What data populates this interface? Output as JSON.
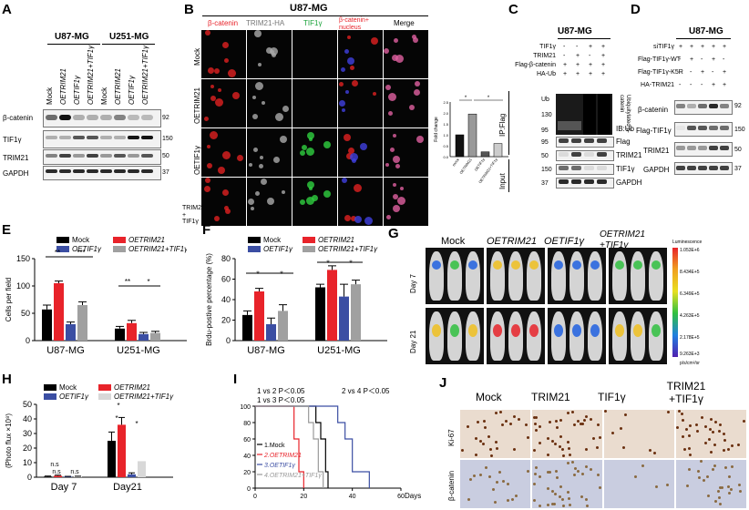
{
  "panels": {
    "A": {
      "label": "A",
      "groups": [
        "U87-MG",
        "U251-MG"
      ],
      "lanes": [
        "Mock",
        "OETRIM21",
        "OETIF1γ",
        "OETRIM21+TIF1γ",
        "Mock",
        "OETRIM21",
        "OETIF1γ",
        "OETRIM21+TIF1γ"
      ],
      "blots": [
        "β-catenin",
        "TIF1γ",
        "TRIM21",
        "GAPDH"
      ],
      "mw": [
        "92",
        "150",
        "50",
        "37"
      ]
    },
    "B": {
      "label": "B",
      "title": "U87-MG",
      "channels": [
        "β-catenin",
        "TRIM21-HA",
        "TIF1γ",
        "β-catenin+ nucleus",
        "Merge"
      ],
      "rows": [
        "Mock",
        "OETRIM21",
        "OETIF1γ",
        "TRIM21 + TIF1γ"
      ],
      "bar_ylabel": "Fold change",
      "bar_categories": [
        "mock",
        "OETRIM21",
        "OETIF1γ",
        "OETRIM21+TIF1γ"
      ],
      "bar_values": [
        1.0,
        1.95,
        0.22,
        0.6
      ],
      "bar_yticks": [
        "0.0",
        "0.5",
        "1.0",
        "1.5",
        "2.0",
        "2.5"
      ],
      "sig": "*"
    },
    "C": {
      "label": "C",
      "title": "U87-MG",
      "conds": [
        "TIF1γ",
        "TRIM21",
        "Flag-β-catenin",
        "HA-Ub"
      ],
      "cond_values": [
        [
          "-",
          "-",
          "+",
          "+"
        ],
        [
          "-",
          "+",
          "-",
          "+"
        ],
        [
          "+",
          "+",
          "+",
          "+"
        ],
        [
          "+",
          "+",
          "+",
          "+"
        ]
      ],
      "blots": [
        "IB:Ub",
        "Flag",
        "TRIM21",
        "TIF1γ",
        "GAPDH"
      ],
      "side": [
        "IP:Flag",
        "Input"
      ],
      "ubq": "Ubiquitylated β-catenin",
      "mw": [
        "Ub",
        "130",
        "95",
        "95",
        "50",
        "150",
        "37"
      ]
    },
    "D": {
      "label": "D",
      "title": "U87-MG",
      "conds": [
        "siTIF1γ",
        "Flag-TIF1γ-WT",
        "Flag-TIF1γ-K5R",
        "HA-TRIM21"
      ],
      "cond_values": [
        [
          "+",
          "+",
          "+",
          "+",
          "+"
        ],
        [
          "-",
          "+",
          "-",
          "+",
          "-"
        ],
        [
          "-",
          "-",
          "+",
          "-",
          "+"
        ],
        [
          "-",
          "-",
          "-",
          "+",
          "+"
        ]
      ],
      "blots": [
        "β-catenin",
        "Flag-TIF1γ",
        "TRIM21",
        "GAPDH"
      ],
      "mw": [
        "92",
        "150",
        "50",
        "37"
      ]
    }
  },
  "chart_data": [
    {
      "panel": "E",
      "type": "bar",
      "ylabel": "Cells per field",
      "ylim": [
        0,
        150
      ],
      "yticks": [
        "0",
        "50",
        "100",
        "150"
      ],
      "categories": [
        "U87-MG",
        "U251-MG"
      ],
      "series": [
        {
          "name": "Mock",
          "color": "#000000",
          "values": [
            57,
            22
          ]
        },
        {
          "name": "OETRIM21",
          "color": "#e8232a",
          "values": [
            105,
            32
          ]
        },
        {
          "name": "OETIF1γ",
          "color": "#3b4ea3",
          "values": [
            30,
            12
          ]
        },
        {
          "name": "OETRIM21+TIF1γ",
          "color": "#a0a0a0",
          "values": [
            65,
            14
          ]
        }
      ],
      "errors": [
        [
          8,
          4
        ],
        [
          4,
          5
        ],
        [
          4,
          3
        ],
        [
          6,
          3
        ]
      ],
      "sig": [
        "**",
        "***",
        "**",
        "*"
      ]
    },
    {
      "panel": "F",
      "type": "bar",
      "ylabel": "Brdu-postive percentage (%)",
      "ylim": [
        0,
        80
      ],
      "yticks": [
        "0",
        "20",
        "40",
        "60",
        "80"
      ],
      "categories": [
        "U87-MG",
        "U251-MG"
      ],
      "series": [
        {
          "name": "Mock",
          "color": "#000000",
          "values": [
            25,
            52
          ]
        },
        {
          "name": "OETRIM21",
          "color": "#e8232a",
          "values": [
            48,
            69
          ]
        },
        {
          "name": "OETIF1γ",
          "color": "#3b4ea3",
          "values": [
            16,
            43
          ]
        },
        {
          "name": "OETRIM21+TIF1γ",
          "color": "#a0a0a0",
          "values": [
            29,
            55
          ]
        }
      ],
      "errors": [
        [
          4,
          3
        ],
        [
          3,
          4
        ],
        [
          6,
          12
        ],
        [
          6,
          4
        ]
      ],
      "sig": [
        "*",
        "*",
        "*",
        "*"
      ]
    },
    {
      "panel": "H",
      "type": "bar",
      "ylabel": "(Photo flux ×10⁸)",
      "ylim": [
        0,
        50
      ],
      "yticks": [
        "0",
        "10",
        "20",
        "30",
        "40",
        "50"
      ],
      "categories": [
        "Day 7",
        "Day21"
      ],
      "series": [
        {
          "name": "Mock",
          "color": "#000000",
          "values": [
            0.5,
            25
          ]
        },
        {
          "name": "OETRIM21",
          "color": "#e8232a",
          "values": [
            1.0,
            36
          ]
        },
        {
          "name": "OETIF1γ",
          "color": "#3b4ea3",
          "values": [
            0.4,
            2
          ]
        },
        {
          "name": "OETRIM21+TIF1γ",
          "color": "#d8d8d8",
          "values": [
            0.5,
            11
          ]
        }
      ],
      "errors": [
        [
          0.3,
          6
        ],
        [
          0.4,
          5
        ],
        [
          0.2,
          1
        ],
        [
          0.2,
          0
        ]
      ],
      "sig": [
        "n.s",
        "n.s",
        "n.s",
        "*",
        "*",
        "*"
      ]
    },
    {
      "panel": "I",
      "type": "line",
      "xlabel": "Days",
      "ylim": [
        0,
        100
      ],
      "xlim": [
        0,
        60
      ],
      "yticks": [
        "0",
        "20",
        "40",
        "60",
        "80",
        "100"
      ],
      "xticks": [
        "0",
        "20",
        "40",
        "60"
      ],
      "annot": [
        "1 vs 2  P＜0.05",
        "1 vs 3  P＜0.05",
        "2 vs 4  P＜0.05"
      ],
      "series": [
        {
          "name": "1.Mock",
          "color": "#000000",
          "x": [
            0,
            25,
            25,
            27,
            27,
            29,
            29,
            30,
            30
          ],
          "y": [
            100,
            100,
            80,
            80,
            60,
            60,
            20,
            20,
            0
          ]
        },
        {
          "name": "2.OETRIM21",
          "color": "#e8232a",
          "x": [
            0,
            16,
            16,
            18,
            18,
            20,
            20
          ],
          "y": [
            100,
            100,
            60,
            60,
            20,
            20,
            0
          ]
        },
        {
          "name": "3.OETIF1γ",
          "color": "#3b4ea3",
          "x": [
            0,
            34,
            34,
            37,
            37,
            40,
            40,
            47,
            47
          ],
          "y": [
            100,
            100,
            80,
            80,
            60,
            60,
            20,
            20,
            0
          ]
        },
        {
          "name": "4.OETRIM21+TIF1γ",
          "color": "#999999",
          "x": [
            0,
            22,
            22,
            24,
            24,
            26,
            26,
            28,
            28
          ],
          "y": [
            100,
            100,
            80,
            80,
            60,
            60,
            20,
            20,
            0
          ]
        }
      ]
    }
  ],
  "G": {
    "label": "G",
    "groups": [
      "Mock",
      "OETRIM21",
      "OETIF1γ",
      "OETRIM21 +TIF1γ"
    ],
    "rows": [
      "Day 7",
      "Day 21"
    ],
    "scale_title": "Luminescence",
    "scale_vals": [
      "1.053E+6",
      "8.434E+5",
      "6.349E+5",
      "4.263E+5",
      "2.178E+5",
      "9.263E+3"
    ],
    "scale_unit": "p/s/cm²/sr"
  },
  "J": {
    "label": "J",
    "groups": [
      "Mock",
      "TRIM21",
      "TIF1γ",
      "TRIM21 +TIF1γ"
    ],
    "rows": [
      "Ki-67",
      "β-catenin"
    ]
  }
}
